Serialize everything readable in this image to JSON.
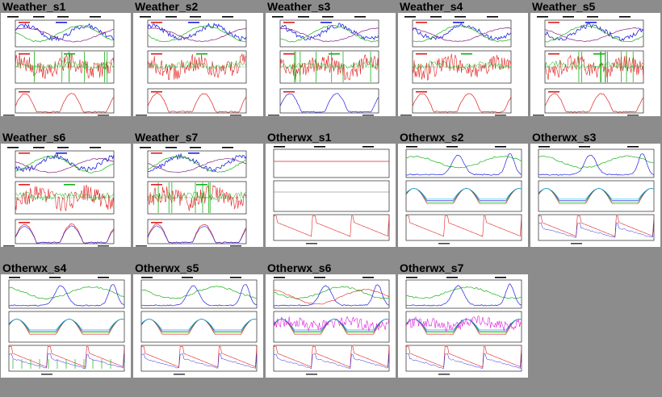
{
  "gallery": {
    "tiles": [
      {
        "title": "Weather_s1",
        "kind": "weather",
        "variant": 1
      },
      {
        "title": "Weather_s2",
        "kind": "weather",
        "variant": 2
      },
      {
        "title": "Weather_s3",
        "kind": "weather",
        "variant": 3
      },
      {
        "title": "Weather_s4",
        "kind": "weather",
        "variant": 4
      },
      {
        "title": "Weather_s5",
        "kind": "weather",
        "variant": 5
      },
      {
        "title": "Weather_s6",
        "kind": "weather",
        "variant": 6
      },
      {
        "title": "Weather_s7",
        "kind": "weather",
        "variant": 7
      },
      {
        "title": "Otherwx_s1",
        "kind": "otherwx",
        "variant": 1
      },
      {
        "title": "Otherwx_s2",
        "kind": "otherwx",
        "variant": 2
      },
      {
        "title": "Otherwx_s3",
        "kind": "otherwx",
        "variant": 3
      },
      {
        "title": "Otherwx_s4",
        "kind": "otherwx",
        "variant": 4
      },
      {
        "title": "Otherwx_s5",
        "kind": "otherwx",
        "variant": 5
      },
      {
        "title": "Otherwx_s6",
        "kind": "otherwx",
        "variant": 6
      },
      {
        "title": "Otherwx_s7",
        "kind": "otherwx",
        "variant": 7
      }
    ]
  },
  "colors": {
    "background": "#8c8c8c",
    "thumb_background": "#ffffff",
    "red": "#e02020",
    "green": "#18b018",
    "blue": "#2020e0",
    "cyan": "#10c8e8",
    "magenta": "#e020e0",
    "purple": "#802080"
  }
}
